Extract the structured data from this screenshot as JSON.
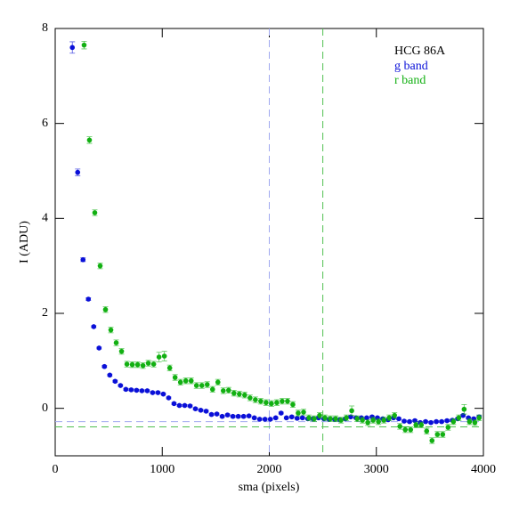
{
  "chart_data": {
    "type": "scatter",
    "annotation": "HCG 86A",
    "xlabel": "sma (pixels)",
    "ylabel": "I (ADU)",
    "xlim": [
      0,
      4000
    ],
    "ylim": [
      -1,
      8
    ],
    "xticks": [
      0,
      1000,
      2000,
      3000,
      4000
    ],
    "yticks": [
      0,
      2,
      4,
      6,
      8
    ],
    "vlines": [
      {
        "value": 2000,
        "color": "#a0a8f0"
      },
      {
        "value": 2500,
        "color": "#50c050"
      }
    ],
    "hlines": [
      {
        "value": -0.28,
        "color": "#a0a8f0"
      },
      {
        "value": -0.39,
        "color": "#50c050"
      }
    ],
    "series": [
      {
        "name": "g band",
        "color": "#0a10d8",
        "x": [
          160,
          210,
          260,
          310,
          360,
          410,
          460,
          510,
          560,
          610,
          660,
          710,
          760,
          810,
          860,
          910,
          960,
          1010,
          1060,
          1110,
          1160,
          1210,
          1260,
          1310,
          1360,
          1410,
          1460,
          1510,
          1560,
          1610,
          1660,
          1710,
          1760,
          1810,
          1860,
          1910,
          1960,
          2010,
          2060,
          2110,
          2160,
          2210,
          2260,
          2310,
          2360,
          2410,
          2460,
          2510,
          2560,
          2610,
          2660,
          2710,
          2760,
          2810,
          2860,
          2910,
          2960,
          3010,
          3060,
          3110,
          3160,
          3210,
          3260,
          3310,
          3360,
          3410,
          3460,
          3510,
          3560,
          3610,
          3660,
          3710,
          3760,
          3810,
          3860,
          3910,
          3960
        ],
        "values": [
          7.6,
          4.97,
          3.13,
          2.3,
          1.72,
          1.27,
          0.88,
          0.7,
          0.57,
          0.48,
          0.4,
          0.39,
          0.38,
          0.37,
          0.37,
          0.33,
          0.33,
          0.3,
          0.22,
          0.1,
          0.06,
          0.06,
          0.05,
          -0.01,
          -0.04,
          -0.06,
          -0.13,
          -0.12,
          -0.17,
          -0.14,
          -0.17,
          -0.17,
          -0.17,
          -0.16,
          -0.2,
          -0.23,
          -0.23,
          -0.23,
          -0.2,
          -0.1,
          -0.2,
          -0.18,
          -0.21,
          -0.2,
          -0.22,
          -0.22,
          -0.2,
          -0.22,
          -0.23,
          -0.23,
          -0.24,
          -0.22,
          -0.18,
          -0.2,
          -0.2,
          -0.2,
          -0.18,
          -0.2,
          -0.22,
          -0.24,
          -0.2,
          -0.22,
          -0.27,
          -0.28,
          -0.26,
          -0.3,
          -0.28,
          -0.3,
          -0.28,
          -0.28,
          -0.26,
          -0.25,
          -0.22,
          -0.15,
          -0.2,
          -0.22,
          -0.18
        ],
        "errors": [
          0.12,
          0.07,
          0.04,
          0.03,
          0.02,
          0.02,
          0.02,
          0.02,
          0.02,
          0.02,
          0.02,
          0.02,
          0.02,
          0.02,
          0.02,
          0.02,
          0.02,
          0.02,
          0.02,
          0.02,
          0.02,
          0.02,
          0.02,
          0.02,
          0.02,
          0.02,
          0.02,
          0.02,
          0.02,
          0.02,
          0.02,
          0.02,
          0.02,
          0.02,
          0.02,
          0.02,
          0.02,
          0.02,
          0.02,
          0.02,
          0.02,
          0.02,
          0.02,
          0.02,
          0.02,
          0.02,
          0.02,
          0.02,
          0.02,
          0.02,
          0.02,
          0.02,
          0.02,
          0.02,
          0.02,
          0.02,
          0.02,
          0.02,
          0.02,
          0.02,
          0.02,
          0.02,
          0.02,
          0.02,
          0.02,
          0.02,
          0.02,
          0.02,
          0.02,
          0.02,
          0.02,
          0.02,
          0.02,
          0.02,
          0.02,
          0.02,
          0.02
        ]
      },
      {
        "name": "r band",
        "color": "#12b012",
        "x": [
          270,
          320,
          370,
          420,
          470,
          520,
          570,
          620,
          670,
          720,
          770,
          820,
          870,
          920,
          970,
          1020,
          1070,
          1120,
          1170,
          1220,
          1270,
          1320,
          1370,
          1420,
          1470,
          1520,
          1570,
          1620,
          1670,
          1720,
          1770,
          1820,
          1870,
          1920,
          1970,
          2020,
          2070,
          2120,
          2170,
          2220,
          2270,
          2320,
          2370,
          2420,
          2470,
          2520,
          2570,
          2620,
          2670,
          2720,
          2770,
          2820,
          2870,
          2920,
          2970,
          3020,
          3070,
          3120,
          3170,
          3220,
          3270,
          3320,
          3370,
          3420,
          3470,
          3520,
          3570,
          3620,
          3670,
          3720,
          3770,
          3820,
          3870,
          3920,
          3960
        ],
        "values": [
          7.65,
          5.65,
          4.12,
          3.0,
          2.08,
          1.65,
          1.38,
          1.2,
          0.93,
          0.92,
          0.92,
          0.9,
          0.95,
          0.93,
          1.08,
          1.1,
          0.85,
          0.65,
          0.55,
          0.58,
          0.58,
          0.48,
          0.48,
          0.5,
          0.4,
          0.55,
          0.37,
          0.38,
          0.32,
          0.3,
          0.28,
          0.22,
          0.18,
          0.15,
          0.12,
          0.1,
          0.12,
          0.15,
          0.15,
          0.08,
          -0.1,
          -0.08,
          -0.2,
          -0.22,
          -0.15,
          -0.2,
          -0.22,
          -0.22,
          -0.25,
          -0.2,
          -0.05,
          -0.22,
          -0.25,
          -0.3,
          -0.25,
          -0.28,
          -0.25,
          -0.2,
          -0.15,
          -0.38,
          -0.45,
          -0.45,
          -0.35,
          -0.35,
          -0.48,
          -0.68,
          -0.55,
          -0.55,
          -0.4,
          -0.28,
          -0.2,
          -0.02,
          -0.28,
          -0.3,
          -0.2
        ],
        "errors": [
          0.08,
          0.07,
          0.06,
          0.06,
          0.06,
          0.06,
          0.06,
          0.06,
          0.06,
          0.06,
          0.06,
          0.06,
          0.06,
          0.06,
          0.1,
          0.1,
          0.06,
          0.06,
          0.06,
          0.06,
          0.06,
          0.06,
          0.06,
          0.06,
          0.06,
          0.06,
          0.06,
          0.06,
          0.06,
          0.06,
          0.06,
          0.06,
          0.06,
          0.06,
          0.06,
          0.06,
          0.06,
          0.06,
          0.06,
          0.06,
          0.06,
          0.06,
          0.06,
          0.06,
          0.06,
          0.06,
          0.06,
          0.06,
          0.06,
          0.06,
          0.1,
          0.06,
          0.06,
          0.06,
          0.06,
          0.06,
          0.06,
          0.06,
          0.06,
          0.06,
          0.06,
          0.06,
          0.06,
          0.06,
          0.06,
          0.06,
          0.06,
          0.06,
          0.06,
          0.06,
          0.06,
          0.1,
          0.06,
          0.06,
          0.06
        ]
      }
    ]
  }
}
